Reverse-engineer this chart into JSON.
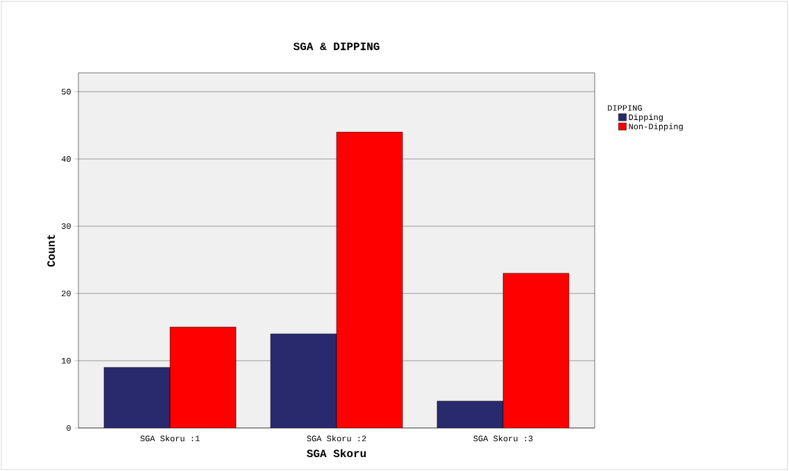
{
  "chart_data": {
    "type": "bar",
    "title": "SGA & DIPPING",
    "xlabel": "SGA Skoru",
    "ylabel": "Count",
    "legend_title": "DIPPING",
    "categories": [
      "SGA Skoru :1",
      "SGA Skoru :2",
      "SGA Skoru :3"
    ],
    "series": [
      {
        "name": "Dipping",
        "color": "#29296e",
        "values": [
          9,
          14,
          4
        ]
      },
      {
        "name": "Non-Dipping",
        "color": "#ff0000",
        "values": [
          15,
          44,
          23
        ]
      }
    ],
    "ylim": [
      0,
      52.8
    ],
    "yticks": [
      0,
      10,
      20,
      30,
      40,
      50
    ],
    "grid": "y",
    "legend": "top right"
  }
}
